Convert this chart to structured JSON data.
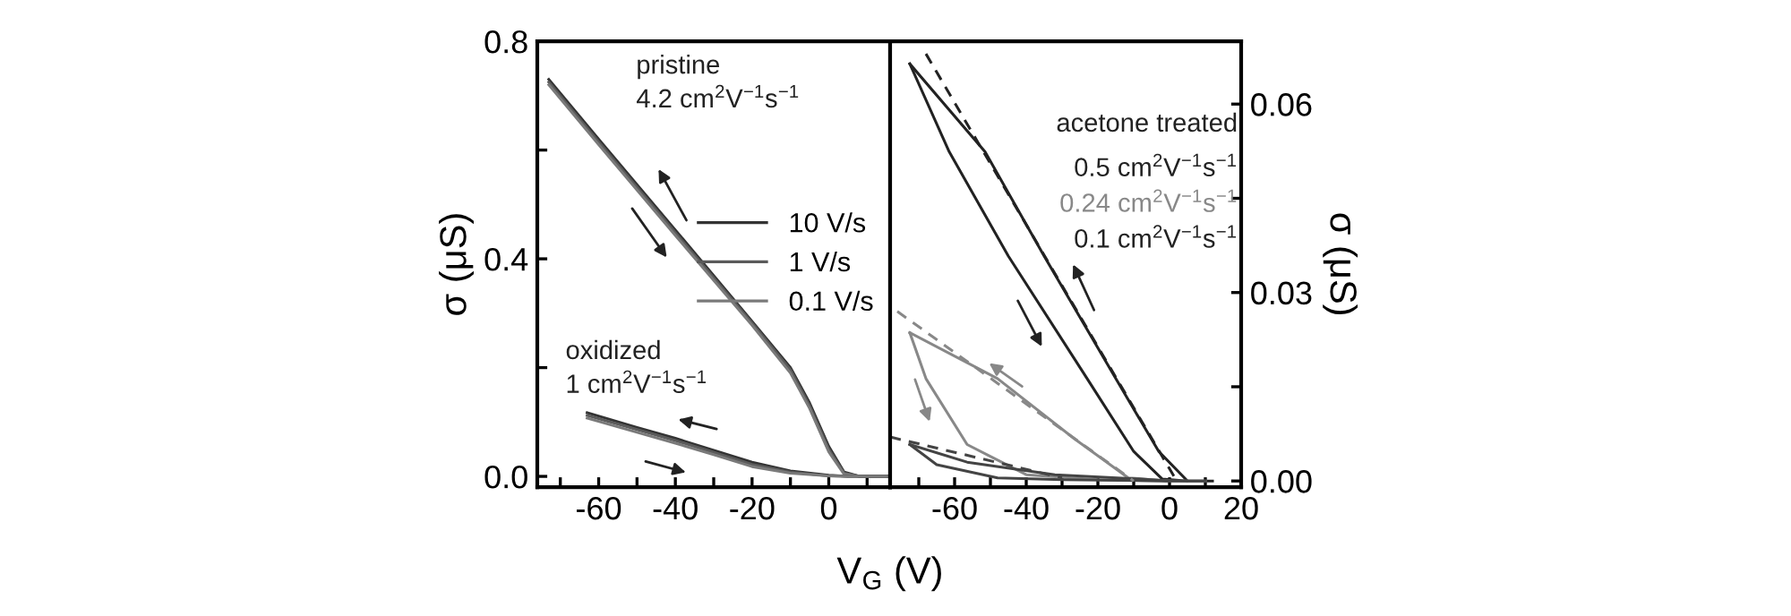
{
  "chart_data": [
    {
      "type": "line",
      "xlabel": "V$_{G}$ (V)",
      "ylabel": "σ (μS)",
      "xlim": [
        -76,
        16
      ],
      "ylim": [
        -0.02,
        0.8
      ],
      "xticks": [
        {
          "value": -70,
          "label": null
        },
        -60,
        {
          "value": -50,
          "label": null
        },
        -40,
        {
          "value": -30,
          "label": null
        },
        -20,
        {
          "value": -10,
          "label": null
        },
        0,
        {
          "value": 10,
          "label": null
        }
      ],
      "yticks": [
        {
          "value": 0,
          "label": "0.0"
        },
        {
          "value": 0.2,
          "label": null
        },
        0.4,
        {
          "value": 0.6,
          "label": null
        },
        0.8
      ],
      "legend": "center right",
      "grid": false,
      "marker": "none",
      "line_style": "solid",
      "series": [
        {
          "name": "10 V/s",
          "color": "#333333",
          "x": [
            -73,
            -60,
            -40,
            -20,
            -10,
            -5,
            0,
            4,
            8,
            16
          ],
          "values": [
            0.73,
            0.62,
            0.453,
            0.285,
            0.2,
            0.135,
            0.055,
            0.008,
            0.0,
            0.0
          ]
        },
        {
          "name": "1 V/s",
          "color": "#5a5a5a",
          "x": [
            -73,
            -60,
            -40,
            -20,
            -10,
            -5,
            0,
            4,
            8,
            16
          ],
          "values": [
            0.725,
            0.615,
            0.448,
            0.282,
            0.196,
            0.13,
            0.05,
            0.006,
            0.0,
            0.0
          ]
        },
        {
          "name": "0.1 V/s",
          "color": "#7a7a7a",
          "x": [
            -73,
            -60,
            -40,
            -20,
            -10,
            -5,
            0,
            4,
            8,
            16
          ],
          "values": [
            0.72,
            0.61,
            0.443,
            0.278,
            0.19,
            0.125,
            0.045,
            0.004,
            0.0,
            0.0
          ]
        },
        {
          "color": "#333333",
          "x": [
            -63,
            -50,
            -40,
            -30,
            -20,
            -10,
            0,
            5,
            16
          ],
          "values": [
            0.117,
            0.09,
            0.07,
            0.048,
            0.026,
            0.01,
            0.002,
            0.0,
            0.0
          ]
        },
        {
          "color": "#5a5a5a",
          "x": [
            -63,
            -50,
            -40,
            -30,
            -20,
            -10,
            0,
            5,
            16
          ],
          "values": [
            0.112,
            0.086,
            0.066,
            0.044,
            0.022,
            0.008,
            0.001,
            0.0,
            0.0
          ]
        },
        {
          "color": "#7a7a7a",
          "x": [
            -63,
            -50,
            -40,
            -30,
            -20,
            -10,
            0,
            5,
            16
          ],
          "values": [
            0.107,
            0.081,
            0.061,
            0.04,
            0.018,
            0.006,
            0.001,
            0.0,
            0.0
          ]
        }
      ],
      "annotations": [
        "pristine\n4.2 cm$^{2}$V$^{−1}$s$^{−1}$",
        "oxidized\n1 cm$^{2}$V$^{−1}$s$^{−1}$"
      ]
    },
    {
      "type": "line",
      "ylabel": "σ (μS)",
      "xlim": [
        -78,
        20
      ],
      "ylim": [
        -0.001,
        0.07
      ],
      "xticks": [
        {
          "value": -70,
          "label": null
        },
        -60,
        {
          "value": -50,
          "label": null
        },
        -40,
        {
          "value": -30,
          "label": null
        },
        -20,
        {
          "value": -10,
          "label": null
        },
        0,
        {
          "value": 10,
          "label": null
        },
        20
      ],
      "yticks": [
        {
          "value": 0,
          "label": "0.00"
        },
        {
          "value": 0.015,
          "label": null
        },
        0.03,
        {
          "value": 0.045,
          "label": null
        },
        0.06
      ],
      "grid": false,
      "marker": "none",
      "series": [
        {
          "color": "#222222",
          "line_style": "solid",
          "x": [
            -72.5,
            -61.5,
            -45,
            -23,
            -10,
            -2,
            5,
            12
          ],
          "values": [
            0.0664,
            0.0524,
            0.0358,
            0.0163,
            0.0047,
            0.0003,
            0.0,
            0.0
          ]
        },
        {
          "color": "#222222",
          "line_style": "solid",
          "x": [
            -72.5,
            -51.5,
            -35,
            -15,
            -3,
            5
          ],
          "values": [
            0.0664,
            0.0524,
            0.0358,
            0.0163,
            0.0047,
            0.0
          ]
        },
        {
          "color": "#888888",
          "line_style": "solid",
          "x": [
            -72.5,
            -68,
            -56.5,
            -40,
            -20,
            0,
            10
          ],
          "values": [
            0.0236,
            0.0163,
            0.0058,
            0.001,
            0.0002,
            0.0,
            0.0
          ]
        },
        {
          "color": "#888888",
          "line_style": "solid",
          "x": [
            -72.5,
            -48,
            -26.5,
            -11.5,
            0
          ],
          "values": [
            0.0236,
            0.0163,
            0.0067,
            0.0005,
            0.0
          ]
        },
        {
          "color": "#444444",
          "line_style": "solid",
          "x": [
            -72.5,
            -65,
            -48,
            -30,
            0,
            10
          ],
          "values": [
            0.0058,
            0.0026,
            0.0005,
            0.0002,
            0.0,
            0.0
          ]
        },
        {
          "color": "#444444",
          "line_style": "solid",
          "x": [
            -72.5,
            -56.5,
            -32,
            -8,
            0
          ],
          "values": [
            0.0058,
            0.003,
            0.001,
            0.0003,
            0.0
          ]
        },
        {
          "color": "#222222",
          "line_style": "dashed",
          "x": [
            -68,
            2
          ],
          "values": [
            0.068,
            0.0
          ]
        },
        {
          "color": "#888888",
          "line_style": "dashed",
          "x": [
            -76,
            -10
          ],
          "values": [
            0.027,
            0.0
          ]
        },
        {
          "color": "#444444",
          "line_style": "dashed",
          "x": [
            -78,
            -30
          ],
          "values": [
            0.007,
            0.0005
          ]
        }
      ],
      "annotations": [
        "acetone treated",
        "0.5 cm$^{2}$V$^{−1}$s$^{−1}$",
        "0.24 cm$^{2}$V$^{−1}$s$^{−1}$",
        "0.1 cm$^{2}$V$^{−1}$s$^{−1}$"
      ]
    }
  ]
}
